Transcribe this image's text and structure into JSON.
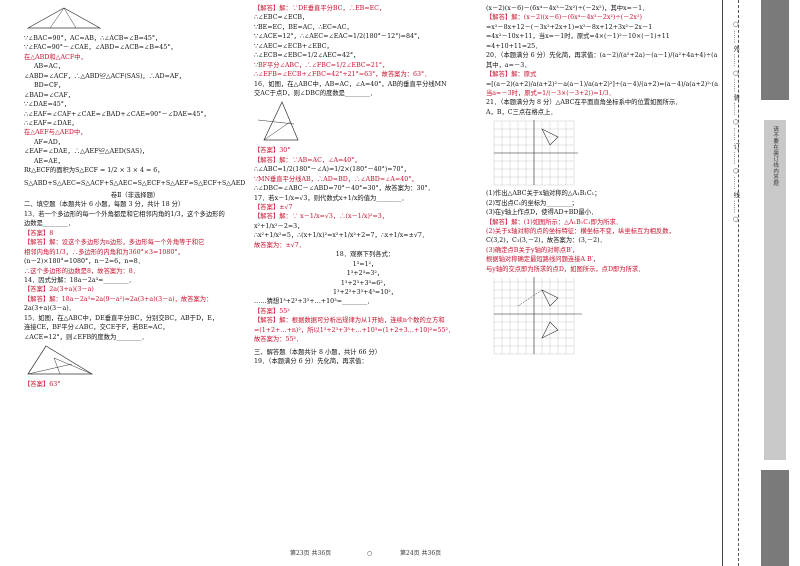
{
  "col1": {
    "l01": "∵∠BAC=90°，AC=AB，∴∠ACB=∠B=45°，",
    "l02": "∵∠FAC=90°－∠CAE，∠ABD=∠ACB=∠B=45°，",
    "l03": "在△ABD和△ACF中，",
    "l04": "AB=AC，",
    "l05": "∠ABD=∠ACF，∴△ABD≌△ACF(SAS)，∴AD=AF，",
    "l06": "BD=CF，",
    "l07": "∠BAD=∠CAF，",
    "l08": "∵∠DAE=45°，",
    "l09": "∴∠EAF=∠CAF+∠CAE=∠BAD+∠CAE=90°－∠DAE=45°，",
    "l10": "∴∠EAF=∠DAE，",
    "l11": "在△AEF与△AED中，",
    "l12": "AF=AD，",
    "l13": "∠EAF=∠DAE，∴△AEF≌△AED(SAS)，",
    "l14": "AE=AE，",
    "l15": "Rt△ECF的面积为S△ECF = 1/2 × 3 × 4 = 6，",
    "l16": "S△ABD+S△AEC=S△ACF+S△AEC=S△ECF+S△AEF=S△ECF+S△AED=15+6=21",
    "l17": "卷Ⅱ（非选择题）",
    "l18": "二、填空题（本题共计 6 小题，每题 3 分，共计 18 分）",
    "l19": "13．若一个多边形的每一个外角都是和它相邻内角的1/3，这个多边形的",
    "l20": "边数是________．",
    "l21": "【答案】8",
    "l22": "【解答】解：设这个多边形为n边形，多边形每一个外角等于和它",
    "l23": "相邻内角的1/3，∴多边形的内角和为360°×3=1080°，",
    "l24": "(n－2)×180°=1080°，n－2=6，n=8．",
    "l25": "∴这个多边形的边数是8，故答案为：8．",
    "l26": "14．因式分解：18a－2a³=________．",
    "l27": "【答案】2a(3+a)(3－a)",
    "l28": "【解答】解：18a－2a³=2a(9－a²)=2a(3+a)(3－a)，故答案为：",
    "l29": "2a(3+a)(3－a)．",
    "l30": "15．如图，在△ABC中，DE垂直平分BC，分别交BC，AB于D，E，",
    "l31": "连接CE，BF平分∠ABC，交CE于F，若BE=AC，",
    "l32": "∠ACE=12°，则∠EFB的度数为________．",
    "l33": "【答案】63°"
  },
  "col2": {
    "l01": "【解答】解：∵DE垂直平分BC，∴EB=EC，",
    "l02": "∴∠EBC=∠ECB，",
    "l03": "∵BE=EC，BE=AC，∴EC=AC，",
    "l04": "∵∠ACE=12°，∴∠AEC=∠EAC=1/2(180°－12°)=84°，",
    "l05": "∵∠AEC=∠ECB+∠EBC，",
    "l06": "∴∠ECB=∠EBC=1/2∠AEC=42°，",
    "l07": "∵BF平分∠ABC，∴∠FBC=1/2∠EBC=21°，",
    "l08": "∴∠EFB=∠ECB+∠FBC=42°+21°=63°，故答案为：63°．",
    "l09": "16．如图，在△ABC中，AB=AC，∠A=40°，AB的垂直平分线MN",
    "l10": "交AC于点D，则∠DBC的度数是________．",
    "l11": "【答案】30°",
    "l12": "【解答】解：∵AB=AC，∠A=40°，",
    "l13": "∴∠ABC=1/2(180°－∠A)=1/2×(180°－40°)=70°，",
    "l14": "∵MN垂直平分线AB，∴AD=BD，∴∠ABD=∠A=40°，",
    "l15": "∴∠DBC=∠ABC－∠ABD=70°－40°=30°，故答案为：30°．",
    "l16": "17．若x－1/x=√3，则代数式x+1/x的值为________．",
    "l17": "【答案】±√7",
    "l18": "【解答】解：∵ x－1/x=√3，∴(x－1/x)²=3，",
    "l19": "x²+1/x²－2=3，",
    "l20": "∴x²+1/x²=5，∴(x+1/x)²=x²+1/x²+2=7，∴x+1/x=±√7．",
    "l21": "故答案为：±√7．",
    "l22": "18．观察下列各式：",
    "l23": "1³=1²，",
    "l24": "1³+2³=3²，",
    "l25": "1³+2³+3³=6²，",
    "l26": "1³+2³+3³+4³=10²，",
    "l27": "……猜想1³+2³+3³+…+10³=________．",
    "l28": "【答案】55²",
    "l29": "【解答】解：根据数据可分析出规律为从1开始，连续n个数的立方和",
    "l30": "=(1+2+…+n)²，所以1³+2³+3³+…+10³=(1+2+3…+10)²=55²．",
    "l31": "故答案为：55²．",
    "l32": "三、解答题（本题共计 8 小题，共计 66 分）",
    "l33": "19．（本题满分 6 分）先化简，再求值："
  },
  "col3": {
    "l01": "(x－2)(x－6)－(6x⁴－4x³－2x²)÷(－2x²)，其中x=－1．",
    "l02": "【解答】解：(x－2)(x－6)－(6x⁴－4x³－2x²)÷(－2x²)",
    "l03": "=x²－8x+12－(－3x²+2x+1)=x²－8x+12+3x²－2x－1",
    "l04": "=4x²－10x+11，当x=－1时，原式=4×(－1)²－10×(－1)+11",
    "l05": "=4+10+11=25．",
    "l06": "20．（本题满分 6 分）先化简，再求值：(a－2)/(a²+2a)－(a－1)/(a²+4a+4)÷(a－4)/(a+2)，",
    "l07": "其中，a=－3．",
    "l08": "【解答】解：原式",
    "l09": "=[(a－2)(a+2)/a(a+2)²－a(a－1)/a(a+2)²]÷(a－4)/(a+2)=(a－4)/a(a+2)²·(a+2)/(a－4)=1/a(a+2)，",
    "l10": "当a=－3时，原式=1/(－3×(－3+2))=1/3．",
    "l11": "21．（本题满分为 8 分）△ABC在平面直角坐标系中的位置如图所示．",
    "l12": "A，B，C三点在格点上．",
    "l13": "(1)作出△ABC关于x轴对称的△A₁B₁C₁；",
    "l14": "(2)写出点C₁的坐标为________；",
    "l15": "(3)在y轴上作点D，使得AD+BD最小．",
    "l16": "【解答】解：(1)如图所示：△A₁B₁C₁即为所求．",
    "l17": "(2)关于x轴对称的点的坐标特征：横坐标不变，纵坐标互为相反数，",
    "l18": "C(3,2)，C₁(3,－2)，故答案为：(3,－2)．",
    "l19": "(3)确定点B关于y轴的对称点B′，",
    "l20": "根据轴对称确定最短路线问题连接A B′，",
    "l21": "与y轴的交点即为所求的点D，如图所示，点D即为所求．"
  },
  "footer": {
    "left": "第23页 共36页",
    "mid": "○",
    "right": "第24页 共36页"
  },
  "strip": {
    "outer_text": "○ …… 外 …… ○ …… 装 …… ○ …… 订 …… ○ …… 线 …… ○",
    "inner_text": "请不要在装订线内答题",
    "colors": {
      "gray_dark": "#7a7a7a",
      "gray_light": "#c8c8c8",
      "answer_red": "#c8102e"
    }
  }
}
